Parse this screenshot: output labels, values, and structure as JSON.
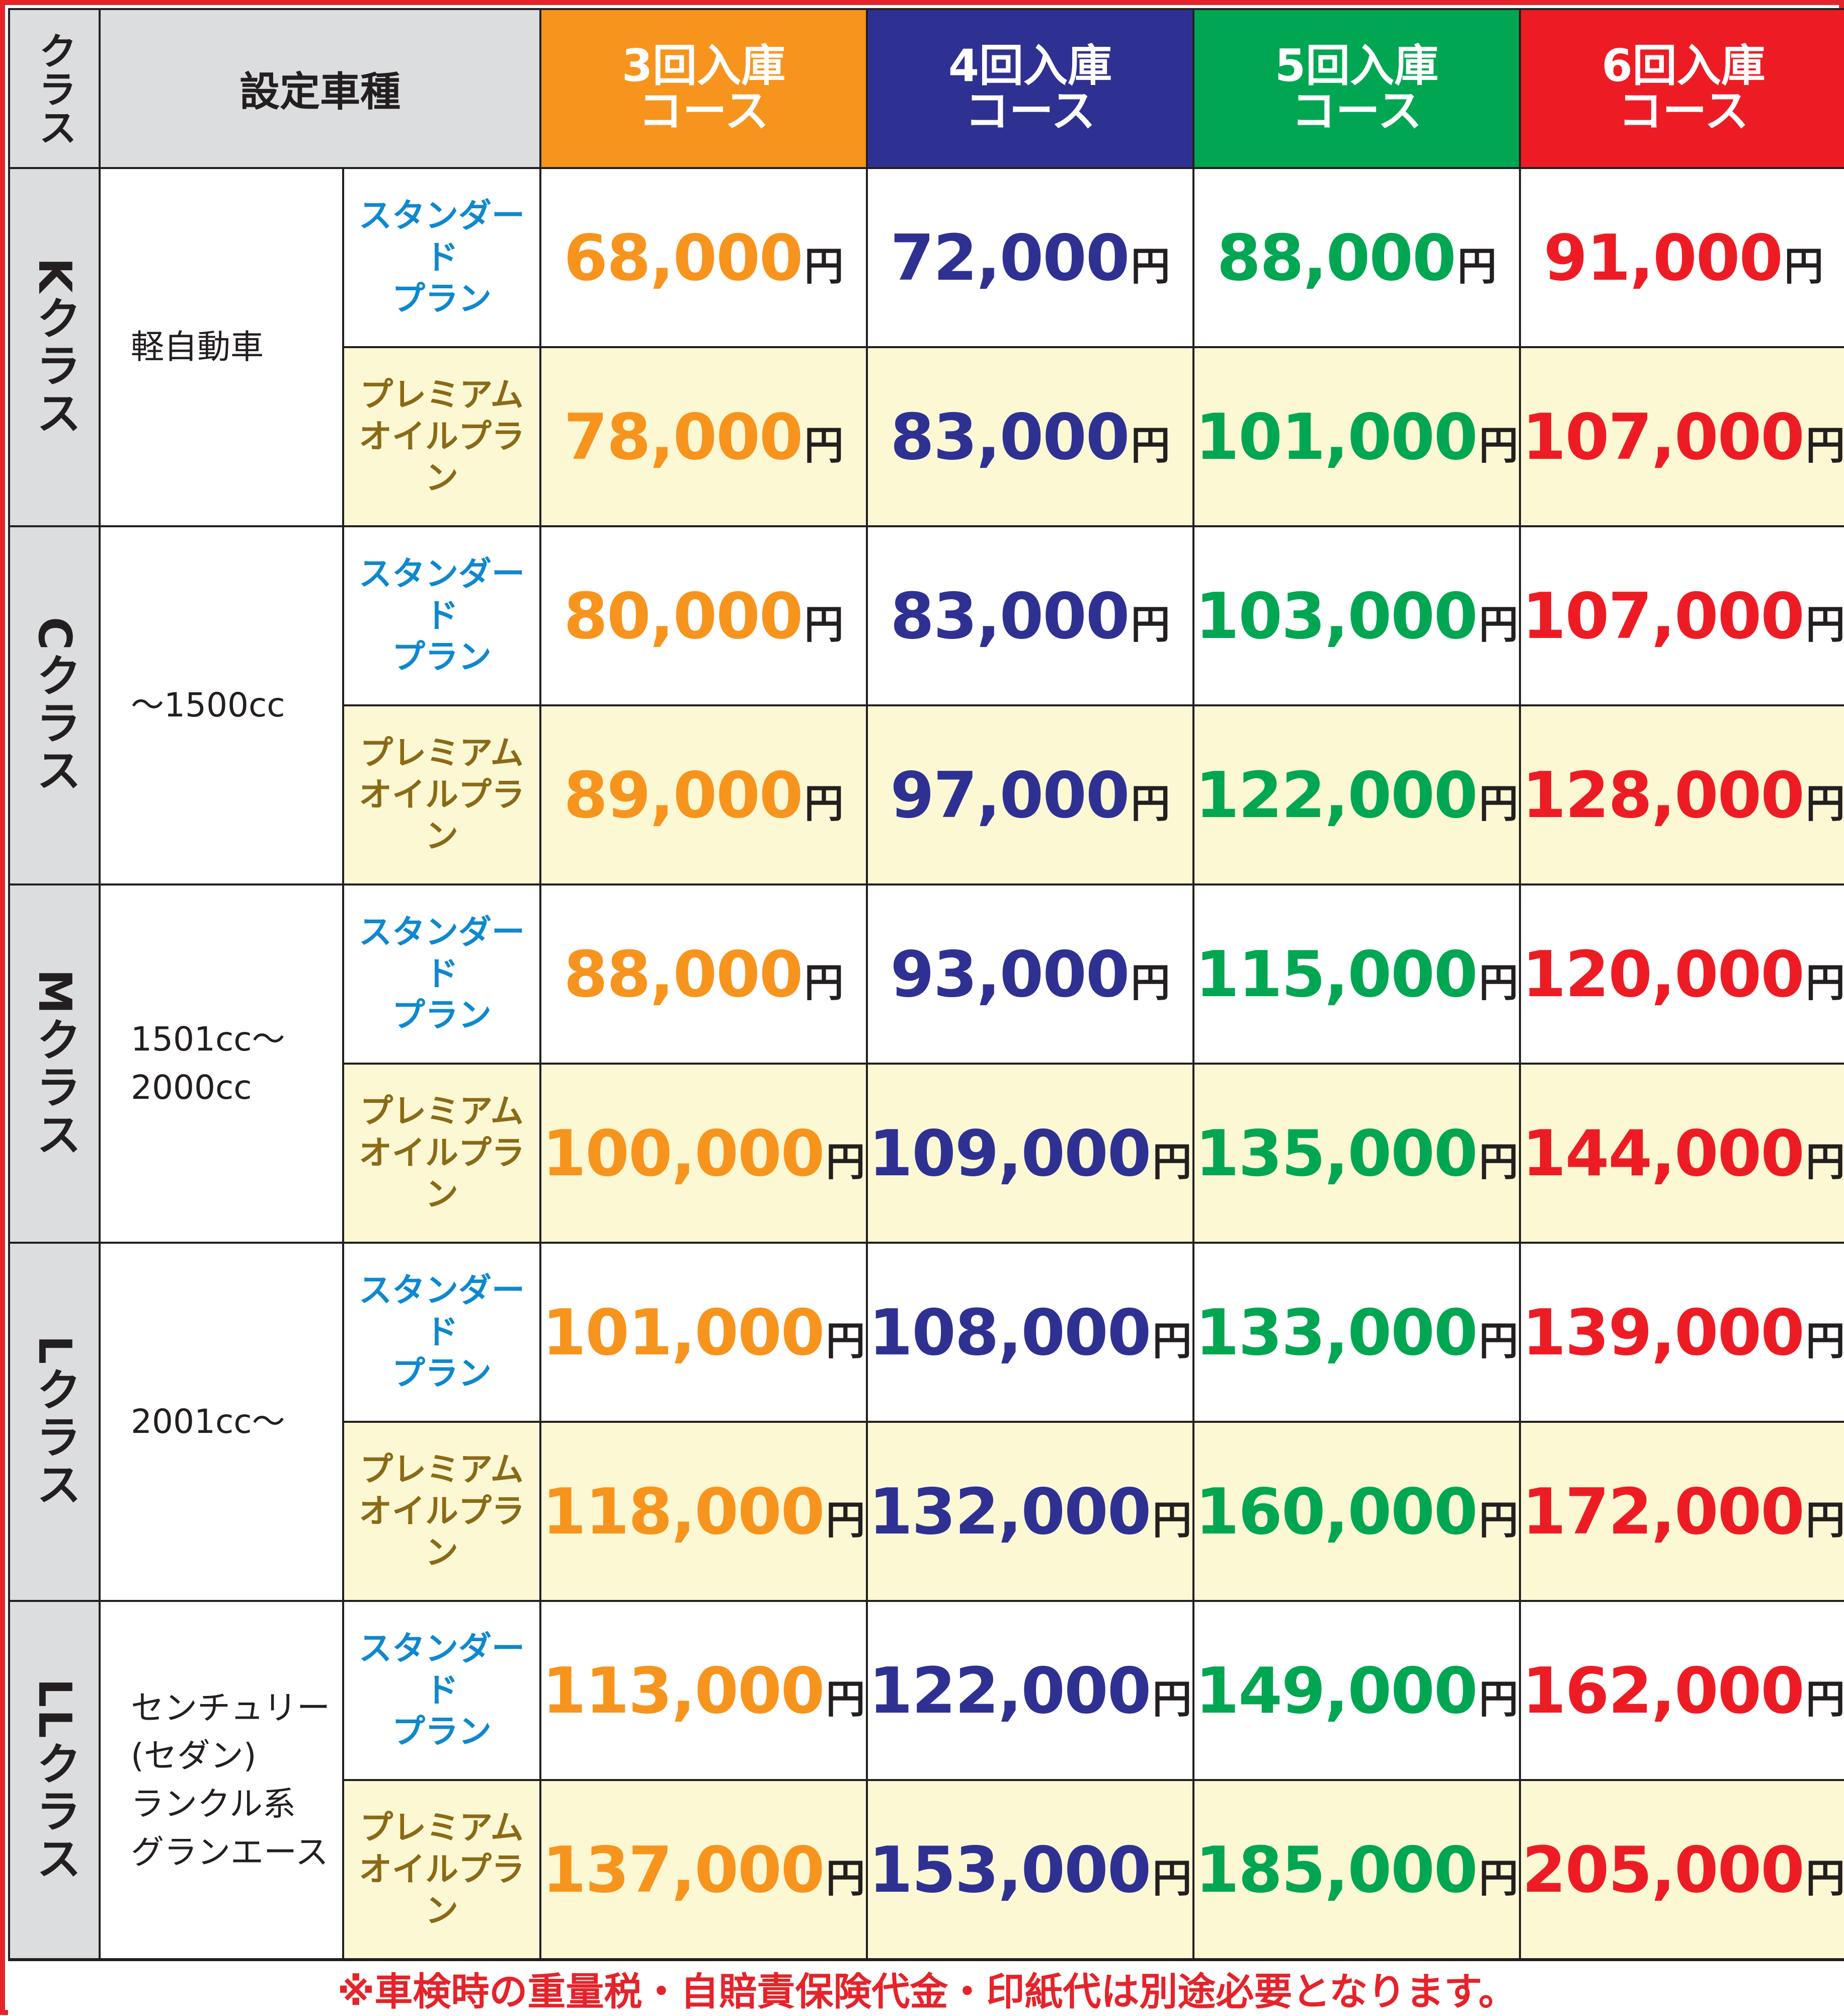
{
  "header": {
    "class_label": "クラス",
    "model_label": "設定車種",
    "courses": [
      {
        "line1": "3回入庫",
        "line2": "コース",
        "color": "#f7941d"
      },
      {
        "line1": "4回入庫",
        "line2": "コース",
        "color": "#2e3192"
      },
      {
        "line1": "5回入庫",
        "line2": "コース",
        "color": "#00a651"
      },
      {
        "line1": "6回入庫",
        "line2": "コース",
        "color": "#ed1c24"
      }
    ]
  },
  "plans": {
    "standard": {
      "line1": "スタンダード",
      "line2": "プラン"
    },
    "premium": {
      "line1": "プレミアム",
      "line2": "オイルプラン"
    }
  },
  "yen": "円",
  "classes": [
    {
      "name": "Kクラス",
      "models": [
        "軽自動車"
      ],
      "standard": [
        "68,000",
        "72,000",
        "88,000",
        "91,000"
      ],
      "premium": [
        "78,000",
        "83,000",
        "101,000",
        "107,000"
      ]
    },
    {
      "name": "Cクラス",
      "models": [
        "〜1500cc"
      ],
      "standard": [
        "80,000",
        "83,000",
        "103,000",
        "107,000"
      ],
      "premium": [
        "89,000",
        "97,000",
        "122,000",
        "128,000"
      ]
    },
    {
      "name": "Mクラス",
      "models": [
        "1501cc〜",
        "2000cc"
      ],
      "standard": [
        "88,000",
        "93,000",
        "115,000",
        "120,000"
      ],
      "premium": [
        "100,000",
        "109,000",
        "135,000",
        "144,000"
      ]
    },
    {
      "name": "Lクラス",
      "models": [
        "2001cc〜"
      ],
      "standard": [
        "101,000",
        "108,000",
        "133,000",
        "139,000"
      ],
      "premium": [
        "118,000",
        "132,000",
        "160,000",
        "172,000"
      ]
    },
    {
      "name": "LLクラス",
      "models": [
        "センチュリー",
        "(セダン)",
        "ランクル系",
        "グランエース"
      ],
      "standard": [
        "113,000",
        "122,000",
        "149,000",
        "162,000"
      ],
      "premium": [
        "137,000",
        "153,000",
        "185,000",
        "205,000"
      ]
    }
  ],
  "footer_note": "※車検時の重量税・自賠責保険代金・印紙代は別途必要となります。"
}
